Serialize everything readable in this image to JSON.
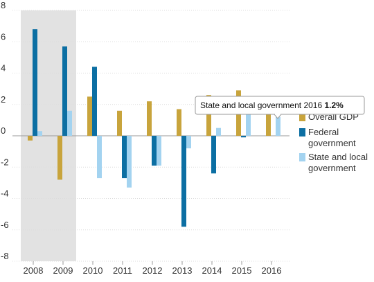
{
  "chart_data": {
    "type": "bar",
    "categories": [
      "2008",
      "2009",
      "2010",
      "2011",
      "2012",
      "2013",
      "2014",
      "2015",
      "2016"
    ],
    "series": [
      {
        "name": "Overall GDP",
        "color": "#c8a43c",
        "values": [
          -0.3,
          -2.8,
          2.5,
          1.6,
          2.2,
          1.7,
          2.6,
          2.9,
          1.5
        ]
      },
      {
        "name": "Federal government",
        "color": "#0c6fa3",
        "values": [
          6.8,
          5.7,
          4.4,
          -2.7,
          -1.9,
          -5.8,
          -2.4,
          -0.1,
          null
        ]
      },
      {
        "name": "State and local government",
        "color": "#a3d3f0",
        "values": [
          0.3,
          1.6,
          -2.7,
          -3.3,
          -1.9,
          -0.8,
          0.5,
          1.7,
          1.2
        ]
      }
    ],
    "yticks": [
      8,
      6,
      4,
      2,
      0,
      -2,
      -4,
      -6,
      -8
    ],
    "ylim": [
      -8,
      8
    ],
    "shaded_categories": [
      "2008",
      "2009"
    ],
    "shade_color": "#e2e2e2",
    "grid": true,
    "legend_position": "right",
    "tooltip": {
      "series": "State and local government",
      "year": "2016",
      "value": "1.2%"
    }
  }
}
